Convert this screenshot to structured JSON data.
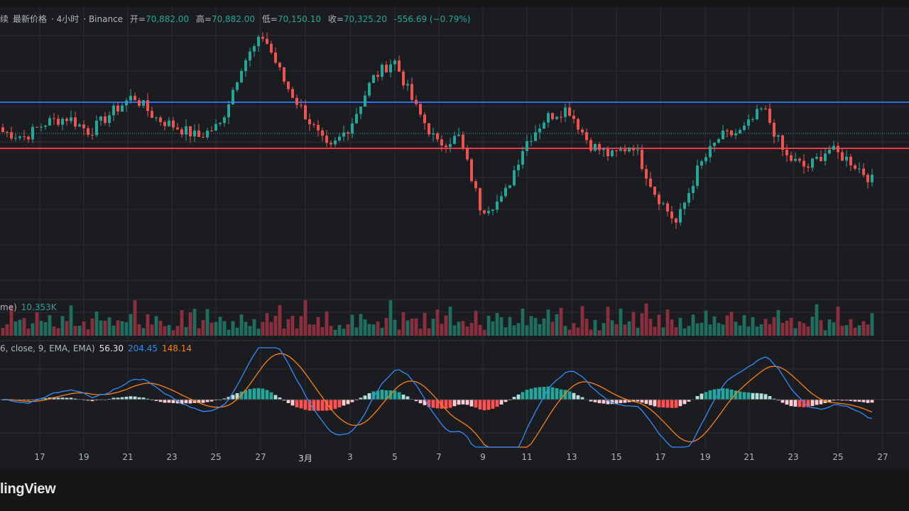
{
  "legend": {
    "symbol_tail": "续",
    "price_type": "最新价格",
    "interval": "4小时",
    "exchange": "Binance",
    "open_label": "开=",
    "open": "70,882.00",
    "high_label": "高=",
    "high": "70,882.00",
    "low_label": "低=",
    "low": "70,150.10",
    "close_label": "收=",
    "close": "70,325.20",
    "change": "-556.69 (−0.79%)"
  },
  "volume_legend": {
    "name_tail": "me)",
    "value": "10.353K"
  },
  "macd_legend": {
    "params": "6, close, 9, EMA, EMA)",
    "histogram": "56.30",
    "macd": "204.45",
    "signal": "148.14"
  },
  "brand": "lingView",
  "colors": {
    "up": "#26a69a",
    "down": "#ef5350",
    "macd_line": "#2f8cff",
    "signal_line": "#ff7f0e",
    "resistance": "#2f6bff",
    "support": "#f23645",
    "background": "#1b1c20"
  },
  "chart_data": {
    "type": "candlestick",
    "x_tick_labels": [
      "17",
      "19",
      "21",
      "23",
      "25",
      "27",
      "3月",
      "3",
      "5",
      "7",
      "9",
      "11",
      "13",
      "15",
      "17",
      "19",
      "21",
      "23",
      "25",
      "27"
    ],
    "last_candle": {
      "open": 70882.0,
      "high": 70882.0,
      "low": 70150.1,
      "close": 70325.2,
      "change": -556.69,
      "change_pct": -0.79
    },
    "price_path_keyframes": [
      0.6,
      0.58,
      0.64,
      0.66,
      0.6,
      0.68,
      0.75,
      0.66,
      0.62,
      0.58,
      0.63,
      0.88,
      1.0,
      0.8,
      0.66,
      0.52,
      0.63,
      0.82,
      0.9,
      0.7,
      0.55,
      0.58,
      0.28,
      0.32,
      0.55,
      0.66,
      0.7,
      0.55,
      0.5,
      0.55,
      0.35,
      0.22,
      0.45,
      0.58,
      0.6,
      0.7,
      0.5,
      0.45,
      0.53,
      0.48,
      0.4
    ],
    "volume_values": [
      0.3,
      0.5,
      0.8,
      0.4,
      0.6,
      0.9,
      0.3,
      0.5,
      0.7,
      0.4,
      0.6,
      1.0,
      0.5,
      0.3,
      0.7,
      0.4,
      0.8,
      0.5,
      0.3,
      0.6
    ],
    "macd": {
      "histogram": 56.3,
      "macd": 204.45,
      "signal": 148.14
    },
    "horizontal_lines": [
      "resistance",
      "support",
      "last-price"
    ]
  }
}
